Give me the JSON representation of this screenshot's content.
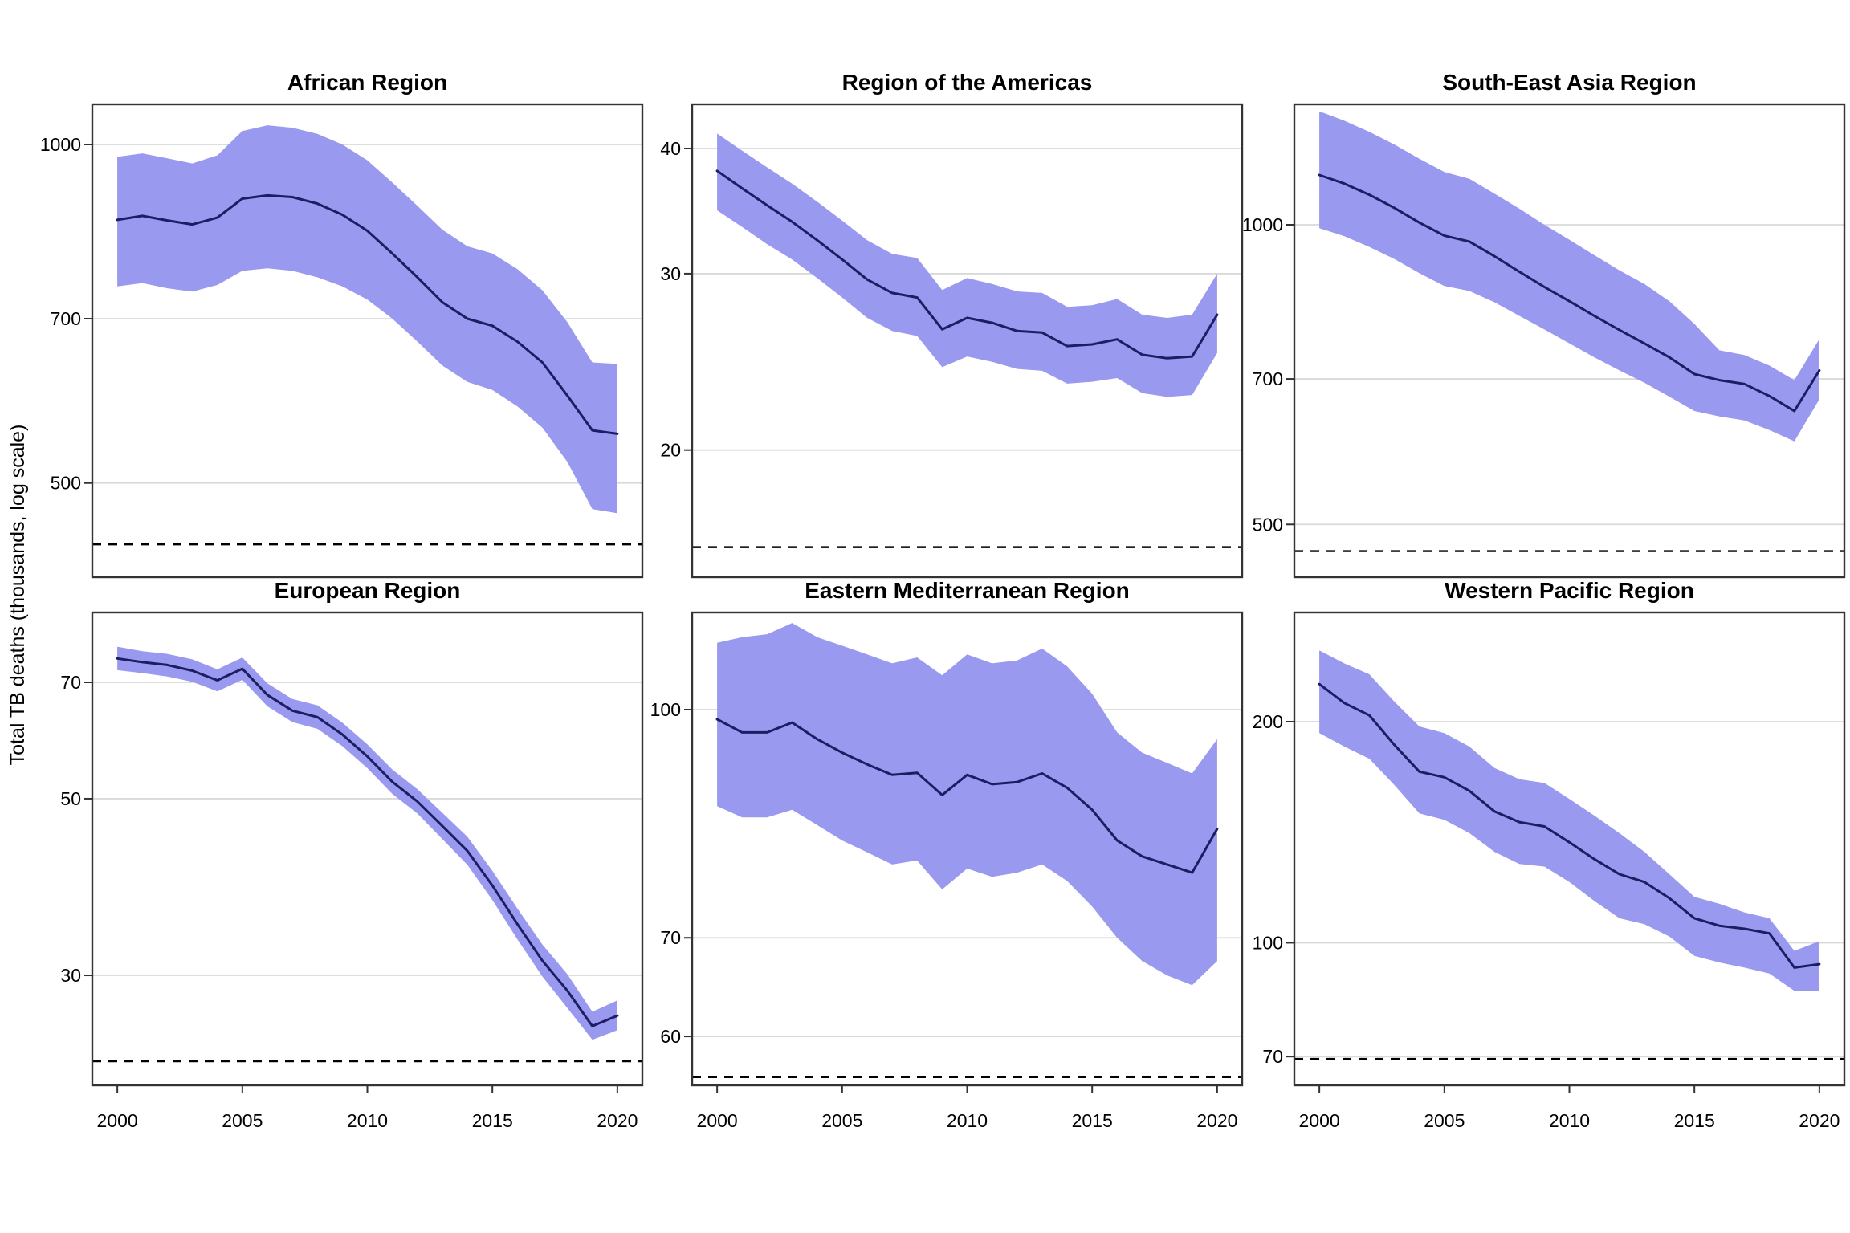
{
  "figure": {
    "ylabel": "Total TB deaths (thousands, log scale)",
    "x_axis_ticks": [
      2000,
      2005,
      2010,
      2015,
      2020
    ],
    "colors": {
      "ribbon_fill": "#9999F0",
      "estimate_line": "#1D1D63",
      "gridline": "#D9D9D9",
      "dashed_reference": "#000000",
      "panel_border": "#333333"
    }
  },
  "chart_data": [
    {
      "type": "line",
      "title": "African Region",
      "y_scale": "log10",
      "y_ticks": [
        1000,
        700,
        500
      ],
      "dashed_reference_value": 441,
      "x": [
        2000,
        2001,
        2002,
        2003,
        2004,
        2005,
        2006,
        2007,
        2008,
        2009,
        2010,
        2011,
        2012,
        2013,
        2014,
        2015,
        2016,
        2017,
        2018,
        2019,
        2020
      ],
      "series": [
        {
          "name": "estimate",
          "values": [
            857,
            864,
            856,
            849,
            861,
            895,
            901,
            898,
            886,
            866,
            838,
            800,
            762,
            724,
            700,
            690,
            668,
            640,
            598,
            557,
            553
          ]
        },
        {
          "name": "upper_bound",
          "values": [
            975,
            982,
            972,
            962,
            978,
            1028,
            1040,
            1035,
            1022,
            1000,
            968,
            925,
            882,
            840,
            812,
            800,
            775,
            742,
            695,
            640,
            638
          ]
        },
        {
          "name": "lower_bound",
          "values": [
            748,
            753,
            745,
            740,
            750,
            772,
            776,
            772,
            762,
            748,
            728,
            700,
            668,
            636,
            615,
            605,
            585,
            560,
            522,
            474,
            470
          ]
        }
      ]
    },
    {
      "type": "line",
      "title": "Region of the Americas",
      "y_scale": "log10",
      "y_ticks": [
        40,
        30,
        20
      ],
      "dashed_reference_value": 16,
      "x": [
        2000,
        2001,
        2002,
        2003,
        2004,
        2005,
        2006,
        2007,
        2008,
        2009,
        2010,
        2011,
        2012,
        2013,
        2014,
        2015,
        2016,
        2017,
        2018,
        2019,
        2020
      ],
      "series": [
        {
          "name": "estimate",
          "values": [
            38.0,
            36.5,
            35.1,
            33.8,
            32.4,
            31.0,
            29.6,
            28.7,
            28.4,
            26.4,
            27.1,
            26.8,
            26.3,
            26.2,
            25.4,
            25.5,
            25.8,
            24.9,
            24.7,
            24.8,
            27.3
          ]
        },
        {
          "name": "upper_bound",
          "values": [
            41.4,
            39.8,
            38.3,
            36.9,
            35.4,
            33.9,
            32.4,
            31.4,
            31.1,
            28.9,
            29.7,
            29.3,
            28.8,
            28.7,
            27.8,
            27.9,
            28.3,
            27.3,
            27.1,
            27.3,
            30.0
          ]
        },
        {
          "name": "lower_bound",
          "values": [
            34.7,
            33.4,
            32.1,
            31.0,
            29.7,
            28.4,
            27.1,
            26.3,
            26.0,
            24.2,
            24.8,
            24.5,
            24.1,
            24.0,
            23.3,
            23.4,
            23.6,
            22.8,
            22.6,
            22.7,
            25.0
          ]
        }
      ]
    },
    {
      "type": "line",
      "title": "South-East Asia Region",
      "y_scale": "log10",
      "y_ticks": [
        1000,
        700,
        500
      ],
      "dashed_reference_value": 470,
      "x": [
        2000,
        2001,
        2002,
        2003,
        2004,
        2005,
        2006,
        2007,
        2008,
        2009,
        2010,
        2011,
        2012,
        2013,
        2014,
        2015,
        2016,
        2017,
        2018,
        2019,
        2020
      ],
      "series": [
        {
          "name": "estimate",
          "values": [
            1122,
            1100,
            1072,
            1040,
            1005,
            975,
            962,
            930,
            897,
            866,
            838,
            810,
            784,
            760,
            736,
            708,
            698,
            692,
            673,
            650,
            714
          ]
        },
        {
          "name": "upper_bound",
          "values": [
            1300,
            1272,
            1240,
            1204,
            1165,
            1130,
            1112,
            1075,
            1038,
            1000,
            966,
            932,
            900,
            872,
            838,
            795,
            748,
            740,
            722,
            698,
            768
          ]
        },
        {
          "name": "lower_bound",
          "values": [
            992,
            974,
            950,
            924,
            894,
            868,
            858,
            836,
            810,
            785,
            760,
            736,
            714,
            694,
            672,
            650,
            642,
            636,
            622,
            606,
            668
          ]
        }
      ]
    },
    {
      "type": "line",
      "title": "European Region",
      "y_scale": "log10",
      "y_ticks": [
        70,
        50,
        30
      ],
      "dashed_reference_value": 23.4,
      "x": [
        2000,
        2001,
        2002,
        2003,
        2004,
        2005,
        2006,
        2007,
        2008,
        2009,
        2010,
        2011,
        2012,
        2013,
        2014,
        2015,
        2016,
        2017,
        2018,
        2019,
        2020
      ],
      "series": [
        {
          "name": "estimate",
          "values": [
            75.0,
            74.2,
            73.6,
            72.4,
            70.4,
            72.8,
            67.5,
            64.5,
            63.3,
            60.2,
            56.5,
            52.5,
            49.6,
            46.2,
            43.0,
            38.9,
            34.8,
            31.3,
            28.7,
            25.9,
            26.7
          ]
        },
        {
          "name": "upper_bound",
          "values": [
            77.6,
            76.6,
            76.0,
            74.8,
            72.7,
            75.2,
            69.8,
            66.7,
            65.5,
            62.3,
            58.5,
            54.4,
            51.4,
            48.0,
            44.8,
            40.6,
            36.4,
            32.8,
            30.1,
            27.0,
            27.9
          ]
        },
        {
          "name": "lower_bound",
          "values": [
            72.5,
            71.9,
            71.2,
            70.1,
            68.2,
            70.5,
            65.3,
            62.4,
            61.2,
            58.2,
            54.6,
            50.7,
            47.9,
            44.5,
            41.3,
            37.3,
            33.3,
            29.9,
            27.3,
            24.9,
            25.6
          ]
        }
      ]
    },
    {
      "type": "line",
      "title": "Eastern Mediterranean Region",
      "y_scale": "log10",
      "y_ticks": [
        100,
        70,
        60
      ],
      "dashed_reference_value": 56.3,
      "x": [
        2000,
        2001,
        2002,
        2003,
        2004,
        2005,
        2006,
        2007,
        2008,
        2009,
        2010,
        2011,
        2012,
        2013,
        2014,
        2015,
        2016,
        2017,
        2018,
        2019,
        2020
      ],
      "series": [
        {
          "name": "estimate",
          "values": [
            98.5,
            96.5,
            96.5,
            98.0,
            95.5,
            93.5,
            91.8,
            90.3,
            90.6,
            87.5,
            90.3,
            89.0,
            89.3,
            90.5,
            88.5,
            85.5,
            81.5,
            79.5,
            78.5,
            77.5,
            83.0
          ]
        },
        {
          "name": "upper_bound",
          "values": [
            111,
            112,
            112.5,
            114.5,
            112,
            110.5,
            109,
            107.5,
            108.5,
            105.5,
            109,
            107.5,
            108,
            110,
            107,
            102.5,
            96.5,
            93.5,
            92,
            90.5,
            95.5
          ]
        },
        {
          "name": "lower_bound",
          "values": [
            86,
            84.5,
            84.5,
            85.5,
            83.5,
            81.5,
            80,
            78.5,
            79,
            75.5,
            78,
            77,
            77.5,
            78.5,
            76.5,
            73.5,
            70,
            67.5,
            66,
            65,
            67.5
          ]
        }
      ]
    },
    {
      "type": "line",
      "title": "Western Pacific Region",
      "y_scale": "log10",
      "y_ticks": [
        200,
        100,
        70
      ],
      "dashed_reference_value": 69.5,
      "x": [
        2000,
        2001,
        2002,
        2003,
        2004,
        2005,
        2006,
        2007,
        2008,
        2009,
        2010,
        2011,
        2012,
        2013,
        2014,
        2015,
        2016,
        2017,
        2018,
        2019,
        2020
      ],
      "series": [
        {
          "name": "estimate",
          "values": [
            225,
            212,
            204,
            186,
            171,
            168,
            161,
            151,
            146,
            144,
            137,
            130,
            124,
            121,
            115,
            108,
            105.5,
            104.5,
            103,
            92.5,
            93.5
          ]
        },
        {
          "name": "upper_bound",
          "values": [
            250,
            240,
            232,
            213,
            197,
            193,
            185,
            173,
            167,
            165,
            157,
            149,
            141,
            133,
            124,
            115.5,
            113,
            110,
            108,
            97.5,
            100.5
          ]
        },
        {
          "name": "lower_bound",
          "values": [
            193,
            185,
            178,
            164,
            150,
            147,
            141,
            133,
            128,
            127,
            121,
            114,
            108,
            106,
            102,
            96,
            94,
            92.5,
            90.8,
            86,
            85.9
          ]
        }
      ]
    }
  ]
}
